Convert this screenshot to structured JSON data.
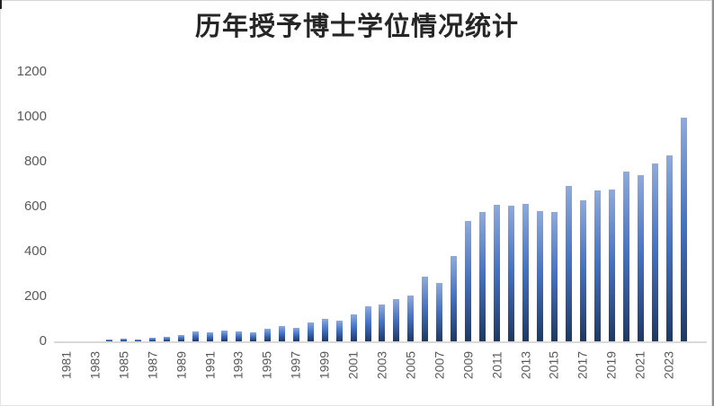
{
  "chart_data": {
    "type": "bar",
    "title": "历年授予博士学位情况统计",
    "xlabel": "",
    "ylabel": "",
    "ylim": [
      0,
      1200
    ],
    "y_ticks": [
      0,
      200,
      400,
      600,
      800,
      1000,
      1200
    ],
    "grid": false,
    "legend": false,
    "x_tick_step_years": 2,
    "categories": [
      1981,
      1982,
      1983,
      1984,
      1985,
      1986,
      1987,
      1988,
      1989,
      1990,
      1991,
      1992,
      1993,
      1994,
      1995,
      1996,
      1997,
      1998,
      1999,
      2000,
      2001,
      2002,
      2003,
      2004,
      2005,
      2006,
      2007,
      2008,
      2009,
      2010,
      2011,
      2012,
      2013,
      2014,
      2015,
      2016,
      2017,
      2018,
      2019,
      2020,
      2021,
      2022,
      2023,
      2024
    ],
    "values": [
      0,
      0,
      2,
      8,
      12,
      8,
      16,
      20,
      28,
      44,
      40,
      48,
      44,
      40,
      56,
      68,
      60,
      84,
      100,
      92,
      120,
      156,
      165,
      190,
      205,
      288,
      262,
      380,
      538,
      575,
      608,
      604,
      612,
      580,
      578,
      692,
      627,
      673,
      677,
      755,
      741,
      792,
      828,
      998
    ],
    "x_tick_labels": [
      "1981",
      "1983",
      "1985",
      "1987",
      "1989",
      "1991",
      "1993",
      "1995",
      "1997",
      "1999",
      "2001",
      "2003",
      "2005",
      "2007",
      "2009",
      "2011",
      "2013",
      "2015",
      "2017",
      "2019",
      "2021",
      "2023"
    ],
    "colors": {
      "bar_gradient_top": "#8faadc",
      "bar_gradient_mid": "#4472c4",
      "bar_gradient_bottom": "#1f3864",
      "axis_label": "#595959",
      "axis_line": "#d9d9d9",
      "title": "#262626"
    }
  }
}
